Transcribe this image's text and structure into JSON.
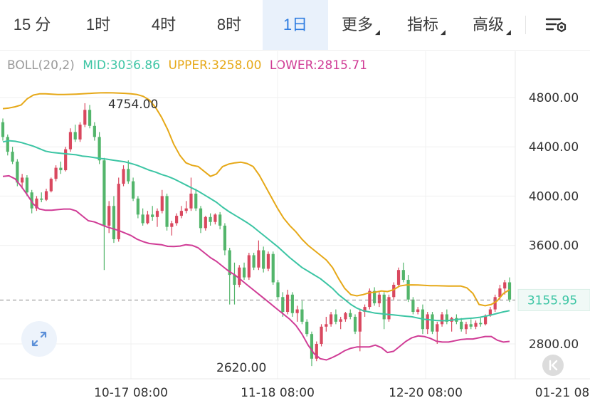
{
  "tabs": [
    {
      "label": "15 分",
      "active": false,
      "caret": false
    },
    {
      "label": "1时",
      "active": false,
      "caret": false
    },
    {
      "label": "4时",
      "active": false,
      "caret": false
    },
    {
      "label": "8时",
      "active": false,
      "caret": false
    },
    {
      "label": "1日",
      "active": true,
      "caret": false
    },
    {
      "label": "更多",
      "active": false,
      "caret": true
    },
    {
      "label": "指标",
      "active": false,
      "caret": true
    },
    {
      "label": "高级",
      "active": false,
      "caret": true
    }
  ],
  "settings_icon": "chart-settings-icon",
  "indicator": {
    "name": "BOLL(20,2)",
    "mid": "MID:3036.86",
    "upper": "UPPER:3258.00",
    "lower": "LOWER:2815.71"
  },
  "colors": {
    "mid": "#3cc5a4",
    "upper": "#e6a817",
    "lower": "#d03c96",
    "up_candle": "#d9485f",
    "down_candle": "#53b56b",
    "accent": "#2f7de1"
  },
  "chart_data": {
    "type": "candlestick",
    "y_ticks": [
      4800,
      4400,
      4000,
      3600,
      2800
    ],
    "y_tick_labels": [
      "4800.00",
      "4400.00",
      "4000.00",
      "3600.00",
      "2800.00"
    ],
    "x_tick_labels": [
      "10-17 08:00",
      "11-18 08:00",
      "12-20 08:00",
      "01-21 08"
    ],
    "current_price": "3155.95",
    "annotations": {
      "high": "4754.00",
      "low": "2620.00"
    },
    "grid": true,
    "ohlc": [
      [
        4600,
        4630,
        4450,
        4480
      ],
      [
        4480,
        4500,
        4330,
        4360
      ],
      [
        4360,
        4400,
        4260,
        4280
      ],
      [
        4280,
        4300,
        4080,
        4110
      ],
      [
        4110,
        4180,
        4060,
        4150
      ],
      [
        4150,
        4170,
        4000,
        4030
      ],
      [
        4030,
        4050,
        3860,
        3900
      ],
      [
        3900,
        4000,
        3880,
        3980
      ],
      [
        3980,
        4030,
        3950,
        3970
      ],
      [
        3970,
        4060,
        3960,
        4040
      ],
      [
        4040,
        4150,
        4030,
        4140
      ],
      [
        4140,
        4250,
        4120,
        4230
      ],
      [
        4230,
        4280,
        4180,
        4210
      ],
      [
        4210,
        4400,
        4200,
        4380
      ],
      [
        4380,
        4550,
        4360,
        4520
      ],
      [
        4520,
        4580,
        4440,
        4460
      ],
      [
        4460,
        4600,
        4440,
        4580
      ],
      [
        4580,
        4754,
        4560,
        4700
      ],
      [
        4700,
        4740,
        4550,
        4570
      ],
      [
        4570,
        4600,
        4450,
        4480
      ],
      [
        4480,
        4520,
        4260,
        4290
      ],
      [
        4290,
        4310,
        3400,
        3760
      ],
      [
        3760,
        3960,
        3700,
        3920
      ],
      [
        3920,
        4000,
        3620,
        3650
      ],
      [
        3650,
        4150,
        3630,
        4100
      ],
      [
        4100,
        4250,
        4080,
        4220
      ],
      [
        4220,
        4290,
        4100,
        4120
      ],
      [
        4120,
        4150,
        3960,
        3980
      ],
      [
        3980,
        4000,
        3820,
        3850
      ],
      [
        3850,
        3900,
        3760,
        3780
      ],
      [
        3780,
        3880,
        3770,
        3850
      ],
      [
        3850,
        3920,
        3800,
        3830
      ],
      [
        3830,
        3900,
        3750,
        3880
      ],
      [
        3880,
        4050,
        3860,
        4000
      ],
      [
        4000,
        4020,
        3720,
        3750
      ],
      [
        3750,
        3800,
        3680,
        3780
      ],
      [
        3780,
        3860,
        3760,
        3840
      ],
      [
        3840,
        3920,
        3820,
        3880
      ],
      [
        3880,
        3960,
        3860,
        3900
      ],
      [
        3900,
        4150,
        3880,
        4020
      ],
      [
        4020,
        4060,
        3880,
        3900
      ],
      [
        3900,
        3920,
        3700,
        3740
      ],
      [
        3740,
        3840,
        3720,
        3830
      ],
      [
        3830,
        3860,
        3760,
        3790
      ],
      [
        3790,
        3860,
        3770,
        3850
      ],
      [
        3850,
        3870,
        3730,
        3760
      ],
      [
        3760,
        3780,
        3520,
        3560
      ],
      [
        3560,
        3580,
        3120,
        3360
      ],
      [
        3360,
        3460,
        3120,
        3280
      ],
      [
        3280,
        3440,
        3260,
        3420
      ],
      [
        3420,
        3460,
        3320,
        3340
      ],
      [
        3340,
        3540,
        3320,
        3520
      ],
      [
        3520,
        3540,
        3400,
        3420
      ],
      [
        3420,
        3640,
        3400,
        3560
      ],
      [
        3560,
        3590,
        3380,
        3410
      ],
      [
        3410,
        3550,
        3390,
        3530
      ],
      [
        3530,
        3550,
        3280,
        3300
      ],
      [
        3300,
        3320,
        3160,
        3180
      ],
      [
        3180,
        3220,
        3020,
        3060
      ],
      [
        3060,
        3240,
        3040,
        3200
      ],
      [
        3200,
        3220,
        3020,
        3050
      ],
      [
        3050,
        3110,
        2980,
        3080
      ],
      [
        3080,
        3150,
        2960,
        2980
      ],
      [
        2980,
        3000,
        2860,
        2880
      ],
      [
        2880,
        2900,
        2620,
        2680
      ],
      [
        2680,
        2820,
        2660,
        2800
      ],
      [
        2800,
        2960,
        2780,
        2940
      ],
      [
        2940,
        3020,
        2900,
        2960
      ],
      [
        2960,
        3060,
        2940,
        3040
      ],
      [
        3040,
        3080,
        2960,
        2980
      ],
      [
        2980,
        3020,
        2920,
        3000
      ],
      [
        3000,
        3060,
        2980,
        3050
      ],
      [
        3050,
        3080,
        3000,
        3020
      ],
      [
        3020,
        3040,
        2880,
        2900
      ],
      [
        2900,
        3080,
        2740,
        3060
      ],
      [
        3060,
        3120,
        3020,
        3100
      ],
      [
        3100,
        3250,
        3080,
        3230
      ],
      [
        3230,
        3260,
        3110,
        3130
      ],
      [
        3130,
        3220,
        3100,
        3200
      ],
      [
        3200,
        3220,
        2920,
        3000
      ],
      [
        3000,
        3200,
        2980,
        3180
      ],
      [
        3180,
        3300,
        3160,
        3280
      ],
      [
        3280,
        3420,
        3260,
        3400
      ],
      [
        3400,
        3460,
        3300,
        3320
      ],
      [
        3320,
        3360,
        3140,
        3160
      ],
      [
        3160,
        3180,
        3040,
        3060
      ],
      [
        3060,
        3100,
        3040,
        3080
      ],
      [
        3080,
        3120,
        2880,
        2920
      ],
      [
        2920,
        3060,
        2880,
        3040
      ],
      [
        3040,
        3060,
        2880,
        2900
      ],
      [
        2900,
        2980,
        2800,
        2960
      ],
      [
        2960,
        3060,
        2940,
        3040
      ],
      [
        3040,
        3080,
        2960,
        2980
      ],
      [
        2980,
        3020,
        2900,
        3010
      ],
      [
        3010,
        3040,
        2960,
        2980
      ],
      [
        2980,
        3010,
        2900,
        2920
      ],
      [
        2920,
        2980,
        2880,
        2960
      ],
      [
        2960,
        3000,
        2920,
        2940
      ],
      [
        2940,
        2990,
        2920,
        2970
      ],
      [
        2970,
        3010,
        2940,
        2960
      ],
      [
        2960,
        3040,
        2950,
        3030
      ],
      [
        3030,
        3100,
        3020,
        3080
      ],
      [
        3080,
        3200,
        3060,
        3180
      ],
      [
        3180,
        3280,
        3160,
        3250
      ],
      [
        3250,
        3320,
        3200,
        3300
      ],
      [
        3300,
        3340,
        3140,
        3160
      ]
    ],
    "boll_upper": [
      4710,
      4715,
      4725,
      4740,
      4790,
      4820,
      4830,
      4830,
      4828,
      4825,
      4824,
      4826,
      4828,
      4830,
      4833,
      4836,
      4838,
      4839,
      4838,
      4836,
      4834,
      4830,
      4824,
      4810,
      4780,
      4720,
      4640,
      4540,
      4420,
      4330,
      4270,
      4250,
      4240,
      4200,
      4160,
      4180,
      4240,
      4260,
      4270,
      4275,
      4265,
      4240,
      4170,
      4080,
      3990,
      3900,
      3820,
      3760,
      3710,
      3650,
      3600,
      3560,
      3520,
      3480,
      3420,
      3330,
      3250,
      3200,
      3190,
      3200,
      3215,
      3220,
      3230,
      3225,
      3240,
      3270,
      3278,
      3279,
      3278,
      3275,
      3273,
      3272,
      3271,
      3270,
      3270,
      3270,
      3255,
      3210,
      3120,
      3110,
      3120,
      3150,
      3210,
      3240
    ],
    "boll_mid": [
      4440,
      4450,
      4445,
      4435,
      4420,
      4405,
      4385,
      4365,
      4355,
      4350,
      4345,
      4340,
      4335,
      4325,
      4320,
      4312,
      4305,
      4300,
      4292,
      4285,
      4278,
      4265,
      4250,
      4230,
      4210,
      4195,
      4175,
      4160,
      4140,
      4115,
      4090,
      4065,
      4040,
      4010,
      3980,
      3950,
      3910,
      3875,
      3845,
      3815,
      3785,
      3750,
      3710,
      3670,
      3630,
      3590,
      3545,
      3500,
      3460,
      3420,
      3390,
      3360,
      3330,
      3290,
      3250,
      3200,
      3160,
      3120,
      3090,
      3070,
      3060,
      3050,
      3045,
      3040,
      3036,
      3030,
      3025,
      3020,
      3010,
      3000,
      2995,
      2990,
      2988,
      2990,
      2996,
      3002,
      3006,
      3010,
      3015,
      3025,
      3035,
      3048,
      3060,
      3070
    ],
    "boll_lower": [
      4160,
      4165,
      4140,
      4080,
      4010,
      3935,
      3895,
      3885,
      3885,
      3890,
      3895,
      3895,
      3880,
      3840,
      3800,
      3790,
      3770,
      3750,
      3735,
      3720,
      3700,
      3680,
      3650,
      3630,
      3615,
      3610,
      3605,
      3592,
      3590,
      3594,
      3605,
      3600,
      3580,
      3540,
      3500,
      3470,
      3430,
      3390,
      3360,
      3320,
      3280,
      3240,
      3200,
      3160,
      3120,
      3080,
      3040,
      3000,
      2950,
      2880,
      2790,
      2720,
      2680,
      2670,
      2690,
      2715,
      2745,
      2765,
      2775,
      2775,
      2775,
      2790,
      2770,
      2730,
      2740,
      2780,
      2820,
      2850,
      2865,
      2860,
      2845,
      2822,
      2815,
      2815,
      2825,
      2835,
      2840,
      2840,
      2850,
      2860,
      2860,
      2830,
      2815,
      2820
    ]
  }
}
